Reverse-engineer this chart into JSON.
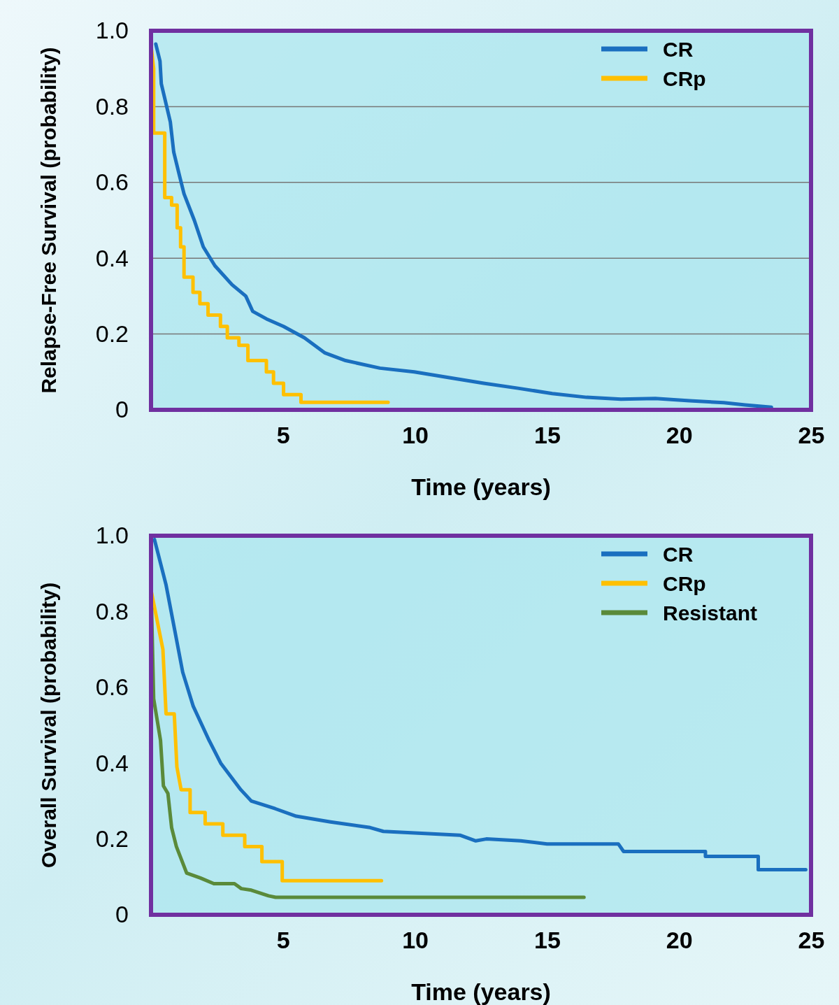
{
  "chart_data": [
    {
      "type": "line",
      "xlabel": "Time (years)",
      "ylabel": "Relapse-Free Survival (probability)",
      "xlim": [
        0,
        25
      ],
      "ylim": [
        0,
        1
      ],
      "xticks": [
        5,
        10,
        15,
        20,
        25
      ],
      "yticks": [
        0,
        0.2,
        0.4,
        0.6,
        0.8,
        {
          "value": 1,
          "label": "1.0"
        }
      ],
      "grid": "y",
      "legend": "top right",
      "series": [
        {
          "name": "CR",
          "color": "#1a6fbf",
          "x": [
            0.18,
            0.34,
            0.39,
            0.73,
            0.86,
            1.07,
            1.25,
            1.64,
            1.98,
            2.42,
            3.07,
            3.59,
            3.85,
            4.37,
            5.02,
            5.81,
            6.59,
            7.37,
            8.67,
            9.97,
            11.3,
            12.6,
            13.9,
            15.2,
            16.5,
            17.8,
            19.1,
            20.4,
            21.7,
            22.5,
            23.5
          ],
          "values": [
            0.965,
            0.92,
            0.86,
            0.76,
            0.68,
            0.62,
            0.57,
            0.5,
            0.43,
            0.38,
            0.33,
            0.3,
            0.26,
            0.24,
            0.22,
            0.19,
            0.15,
            0.13,
            0.11,
            0.1,
            0.085,
            0.07,
            0.057,
            0.043,
            0.033,
            0.028,
            0.03,
            0.024,
            0.019,
            0.013,
            0.007
          ]
        },
        {
          "name": "CRp",
          "color": "#ffc000",
          "x": [
            0.02,
            0.1,
            0.1,
            0.52,
            0.52,
            0.78,
            0.78,
            0.99,
            0.99,
            1.12,
            1.12,
            1.25,
            1.25,
            1.59,
            1.59,
            1.85,
            1.85,
            2.16,
            2.16,
            2.63,
            2.63,
            2.89,
            2.89,
            3.33,
            3.33,
            3.67,
            3.67,
            4.37,
            4.37,
            4.64,
            4.64,
            5.02,
            5.02,
            5.68,
            5.68,
            8.98
          ],
          "values": [
            0.95,
            0.9,
            0.73,
            0.73,
            0.56,
            0.56,
            0.54,
            0.54,
            0.48,
            0.48,
            0.43,
            0.43,
            0.35,
            0.35,
            0.31,
            0.31,
            0.28,
            0.28,
            0.25,
            0.25,
            0.22,
            0.22,
            0.19,
            0.19,
            0.17,
            0.17,
            0.13,
            0.13,
            0.1,
            0.1,
            0.07,
            0.07,
            0.04,
            0.04,
            0.02,
            0.02
          ]
        }
      ]
    },
    {
      "type": "line",
      "xlabel": "Time (years)",
      "ylabel": "Overall Survival (probability)",
      "xlim": [
        0,
        25
      ],
      "ylim": [
        0,
        1
      ],
      "xticks": [
        5,
        10,
        15,
        20,
        25
      ],
      "yticks": [
        0,
        0.2,
        0.4,
        0.6,
        0.8,
        {
          "value": 1,
          "label": "1.0"
        }
      ],
      "legend": "top right",
      "series": [
        {
          "name": "CR",
          "color": "#1a6fbf",
          "x": [
            0.13,
            0.57,
            0.9,
            1.2,
            1.6,
            2.2,
            2.64,
            3.4,
            3.8,
            4.7,
            5.5,
            6.8,
            8.3,
            8.8,
            11.7,
            12.3,
            12.7,
            14,
            15,
            17.7,
            17.9,
            21,
            21,
            23,
            23,
            24.8
          ],
          "values": [
            0.99,
            0.87,
            0.75,
            0.64,
            0.55,
            0.46,
            0.4,
            0.33,
            0.3,
            0.28,
            0.26,
            0.245,
            0.23,
            0.22,
            0.21,
            0.195,
            0.2,
            0.195,
            0.187,
            0.187,
            0.167,
            0.167,
            0.154,
            0.154,
            0.119,
            0.119
          ]
        },
        {
          "name": "CRp",
          "color": "#ffc000",
          "x": [
            0.02,
            0.45,
            0.57,
            0.88,
            0.98,
            1.14,
            1.48,
            1.48,
            2.05,
            2.05,
            2.72,
            2.72,
            3.55,
            3.55,
            4.2,
            4.2,
            4.97,
            4.97,
            8.73
          ],
          "values": [
            0.85,
            0.7,
            0.53,
            0.53,
            0.39,
            0.33,
            0.33,
            0.27,
            0.27,
            0.24,
            0.24,
            0.21,
            0.21,
            0.18,
            0.18,
            0.14,
            0.14,
            0.09,
            0.09
          ]
        },
        {
          "name": "Resistant",
          "color": "#5a8a3a",
          "x": [
            0.02,
            0.1,
            0.36,
            0.47,
            0.64,
            0.78,
            0.96,
            1.35,
            1.87,
            2.38,
            3.16,
            3.42,
            3.8,
            4.45,
            4.72,
            16.4
          ],
          "values": [
            0.81,
            0.57,
            0.46,
            0.34,
            0.32,
            0.23,
            0.18,
            0.11,
            0.097,
            0.082,
            0.082,
            0.069,
            0.065,
            0.05,
            0.046,
            0.046
          ]
        }
      ]
    }
  ]
}
